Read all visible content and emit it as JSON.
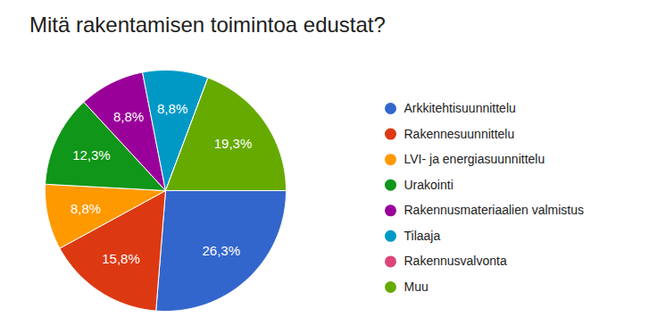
{
  "chart_data": {
    "type": "pie",
    "title": "Mitä rakentamisen toimintoa edustat?",
    "categories": [
      "Arkkitehtisuunnittelu",
      "Rakennesuunnittelu",
      "LVI- ja energiasuunnittelu",
      "Urakointi",
      "Rakennusmateriaalien valmistus",
      "Tilaaja",
      "Rakennusvalvonta",
      "Muu"
    ],
    "values": [
      26.3,
      15.8,
      8.8,
      12.3,
      8.8,
      8.8,
      0,
      19.3
    ],
    "colors": [
      "#3366cc",
      "#dc3912",
      "#ff9900",
      "#109618",
      "#990099",
      "#0099c6",
      "#dd4477",
      "#66aa00"
    ],
    "data_labels": true,
    "value_labels": [
      "26,3%",
      "15,8%",
      "8,8%",
      "12,3%",
      "8,8%",
      "8,8%",
      null,
      "19,3%"
    ],
    "legend": "right"
  }
}
